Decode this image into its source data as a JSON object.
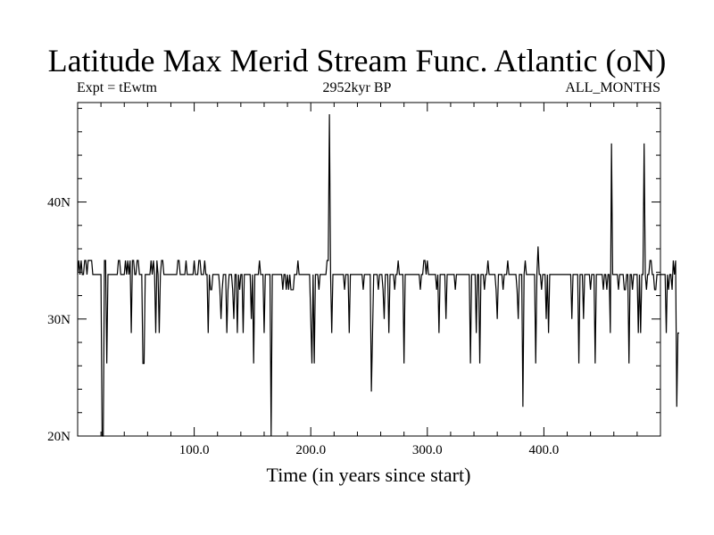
{
  "header": {
    "title": "Latitude Max Merid Stream Func. Atlantic (oN)",
    "left_label": "Expt = tEwtm",
    "center_label": "2952kyr BP",
    "right_label": "ALL_MONTHS"
  },
  "chart_data": {
    "type": "line",
    "title": "Latitude Max Merid Stream Func. Atlantic (oN)",
    "xlabel": "Time (in years since start)",
    "ylabel": "",
    "xlim": [
      0,
      500
    ],
    "ylim": [
      20,
      48.5
    ],
    "x_ticks": [
      {
        "value": 100,
        "label": "100.0"
      },
      {
        "value": 200,
        "label": "200.0"
      },
      {
        "value": 300,
        "label": "300.0"
      },
      {
        "value": 400,
        "label": "400.0"
      }
    ],
    "y_ticks": [
      {
        "value": 20,
        "label": "20N"
      },
      {
        "value": 30,
        "label": "30N"
      },
      {
        "value": 40,
        "label": "40N"
      }
    ],
    "grid": false,
    "series": [
      {
        "name": "",
        "color": "#000000",
        "x_start": 0,
        "x_step": 1,
        "values": [
          33.8,
          35,
          33.8,
          35,
          33.8,
          33.8,
          35,
          35,
          33.8,
          35,
          35,
          35,
          35,
          33.8,
          33.8,
          33.8,
          33.8,
          33.8,
          33.8,
          33.8,
          33.8,
          20,
          20,
          35,
          35,
          26.2,
          33.8,
          33.8,
          33.8,
          33.8,
          33.8,
          33.8,
          33.8,
          33.8,
          33.8,
          35,
          35,
          33.8,
          33.8,
          33.8,
          33.8,
          35,
          33.8,
          35,
          33.8,
          35,
          28.8,
          35,
          35,
          33.8,
          33.8,
          35,
          35,
          33.8,
          33.8,
          33.8,
          26.2,
          26.2,
          33.8,
          33.8,
          33.8,
          33.8,
          33.8,
          35,
          33.8,
          35,
          33.8,
          28.8,
          35,
          33.8,
          28.8,
          33.8,
          35,
          35,
          33.8,
          33.8,
          33.8,
          33.8,
          33.8,
          33.8,
          33.8,
          33.8,
          33.8,
          33.8,
          33.8,
          33.8,
          35,
          35,
          33.8,
          33.8,
          33.8,
          33.8,
          33.8,
          35,
          33.8,
          33.8,
          33.8,
          33.8,
          33.8,
          33.8,
          35,
          33.8,
          33.8,
          33.8,
          35,
          35,
          33.8,
          33.8,
          33.8,
          35,
          33.8,
          33.8,
          28.8,
          33.8,
          32.5,
          32.5,
          33.8,
          33.8,
          33.8,
          33.8,
          33.8,
          33.8,
          32.5,
          30,
          32.5,
          33.8,
          33.8,
          33.8,
          28.8,
          32.5,
          33.8,
          33.8,
          33.8,
          32.5,
          30,
          33.8,
          33.8,
          28.8,
          33.8,
          32.5,
          33.8,
          33.8,
          28.8,
          33.8,
          33.8,
          33.8,
          33.8,
          33.8,
          33.8,
          30,
          33.8,
          26.2,
          33.8,
          33.8,
          33.8,
          33.8,
          35,
          33.8,
          33.8,
          33.8,
          28.8,
          33.8,
          33.8,
          33.8,
          33.8,
          33.8,
          20,
          33.8,
          33.8,
          33.8,
          33.8,
          33.8,
          33.8,
          33.8,
          33.8,
          33.8,
          32.5,
          33.8,
          33.8,
          32.5,
          33.8,
          32.5,
          33.8,
          32.5,
          32.5,
          32.5,
          33.8,
          33.8,
          33.8,
          35,
          33.8,
          33.8,
          33.8,
          33.8,
          33.8,
          33.8,
          33.8,
          33.8,
          33.8,
          33.8,
          30,
          26.2,
          33.8,
          26.2,
          33.8,
          33.8,
          33.8,
          32.5,
          33.8,
          33.8,
          33.8,
          33.8,
          33.8,
          33.8,
          35,
          35,
          47.5,
          33.8,
          28.8,
          33.8,
          33.8,
          33.8,
          33.8,
          33.8,
          33.8,
          33.8,
          33.8,
          33.8,
          33.8,
          32.5,
          33.8,
          33.8,
          33.8,
          28.8,
          33.8,
          33.8,
          33.8,
          33.8,
          33.8,
          33.8,
          33.8,
          33.8,
          33.8,
          33.8,
          33.8,
          32.5,
          33.8,
          33.8,
          33.8,
          33.8,
          33.8,
          33.8,
          23.8,
          28.8,
          33.8,
          33.8,
          33.8,
          33.8,
          32.5,
          33.8,
          33.8,
          33.8,
          32.5,
          30,
          33.8,
          33.8,
          33.8,
          28.8,
          33.8,
          33.8,
          33.8,
          33.8,
          32.5,
          33.8,
          33.8,
          35,
          33.8,
          33.8,
          33.8,
          33.8,
          26.2,
          33.8,
          33.8,
          33.8,
          33.8,
          33.8,
          33.8,
          33.8,
          33.8,
          33.8,
          33.8,
          33.8,
          33.8,
          33.8,
          32.5,
          33.8,
          33.8,
          35,
          35,
          33.8,
          35,
          33.8,
          33.8,
          33.8,
          33.8,
          33.8,
          33.8,
          33.8,
          32.5,
          33.8,
          28.8,
          33.8,
          33.8,
          33.8,
          33.8,
          33.8,
          30,
          33.8,
          33.8,
          33.8,
          33.8,
          33.8,
          33.8,
          33.8,
          32.5,
          33.8,
          33.8,
          33.8,
          33.8,
          33.8,
          33.8,
          33.8,
          33.8,
          33.8,
          33.8,
          33.8,
          33.8,
          26.2,
          33.8,
          33.8,
          33.8,
          33.8,
          28.8,
          33.8,
          33.8,
          26.2,
          33.8,
          33.8,
          33.8,
          32.5,
          33.8,
          33.8,
          35,
          33.8,
          33.8,
          33.8,
          33.8,
          33.8,
          33.8,
          32.5,
          30,
          33.8,
          33.8,
          33.8,
          33.8,
          32.5,
          33.8,
          33.8,
          33.8,
          35,
          33.8,
          33.8,
          33.8,
          33.8,
          33.8,
          33.8,
          33.8,
          32.5,
          30,
          33.8,
          33.8,
          33.8,
          22.5,
          33.8,
          35,
          33.8,
          33.8,
          33.8,
          33.8,
          33.8,
          33.8,
          33.8,
          33.8,
          26.2,
          33.8,
          36.2,
          33.8,
          33.8,
          32.5,
          33.8,
          33.8,
          33.8,
          30,
          33.8,
          28.8,
          33.8,
          33.8,
          33.8,
          33.8,
          33.8,
          33.8,
          33.8,
          33.8,
          33.8,
          33.8,
          33.8,
          33.8,
          33.8,
          33.8,
          33.8,
          33.8,
          33.8,
          33.8,
          33.8,
          30,
          33.8,
          33.8,
          33.8,
          33.8,
          33.8,
          26.2,
          33.8,
          33.8,
          33.8,
          30,
          33.8,
          33.8,
          33.8,
          33.8,
          33.8,
          32.5,
          33.8,
          33.8,
          33.8,
          26.2,
          33.8,
          33.8,
          33.8,
          33.8,
          33.8,
          33.8,
          32.5,
          33.8,
          33.8,
          32.5,
          33.8,
          33.8,
          28.8,
          45,
          33.8,
          33.8,
          33.8,
          33.8,
          33.8,
          32.5,
          33.8,
          33.8,
          33.8,
          33.8,
          32.5,
          32.5,
          33.8,
          33.8,
          26.2,
          33.8,
          33.8,
          32.5,
          33.8,
          33.8,
          33.8,
          33.8,
          28.8,
          33.8,
          28.8,
          33.8,
          33.8,
          45,
          33.8,
          32.5,
          33.8,
          33.8,
          35,
          35,
          33.8,
          33.8,
          32.5,
          32.5,
          33.8,
          33.8,
          33.8,
          33.8,
          33.8,
          33.8,
          33.8,
          33.8,
          28.8,
          33.8,
          32.5,
          33.8,
          33.8,
          32.5,
          35,
          33.8,
          35,
          22.5,
          28.8,
          28.8
        ]
      }
    ]
  }
}
